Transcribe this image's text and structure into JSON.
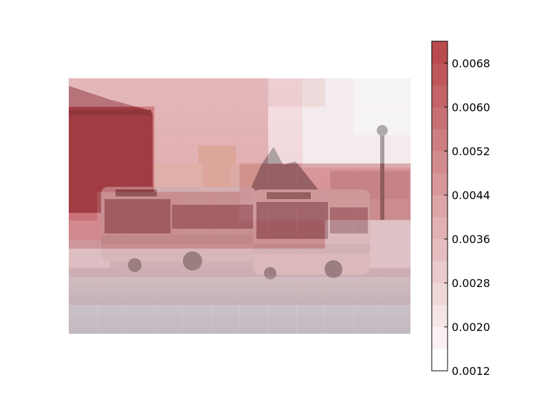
{
  "chart_data": {
    "type": "heatmap",
    "background": "photo of two city buses parked on a snowy lot at dusk, red/brick building at left, bare trees at right",
    "overlay": {
      "rows": 9,
      "cols": 12,
      "values": [
        [
          0.0043,
          0.0043,
          0.0043,
          0.0043,
          0.0043,
          0.0043,
          0.0043,
          0.003,
          0.0029,
          0.002,
          0.0019,
          0.0018
        ],
        [
          0.0074,
          0.0074,
          0.0074,
          0.0043,
          0.0043,
          0.0043,
          0.0043,
          0.0024,
          0.0023,
          0.002,
          0.0019,
          0.0019
        ],
        [
          0.0074,
          0.0074,
          0.0074,
          0.0043,
          0.0043,
          0.0043,
          0.0043,
          0.0024,
          0.0023,
          0.0022,
          0.0021,
          0.0021
        ],
        [
          0.0074,
          0.0074,
          0.0074,
          0.0043,
          0.0043,
          0.0043,
          0.0054,
          0.0054,
          0.0054,
          0.0054,
          0.0054,
          0.0054
        ],
        [
          0.0074,
          0.0058,
          0.0058,
          0.0058,
          0.0058,
          0.0058,
          0.0054,
          0.0054,
          0.0054,
          0.0054,
          0.0054,
          0.0054
        ],
        [
          0.0058,
          0.0058,
          0.0058,
          0.0058,
          0.0058,
          0.0058,
          0.0058,
          0.0058,
          0.0058,
          0.0036,
          0.0036,
          0.0036
        ],
        [
          0.0036,
          0.0036,
          0.0036,
          0.0036,
          0.0036,
          0.0036,
          0.0036,
          0.0036,
          0.0036,
          0.0036,
          0.0036,
          0.0036
        ],
        [
          0.003,
          0.003,
          0.003,
          0.003,
          0.003,
          0.003,
          0.003,
          0.003,
          0.003,
          0.003,
          0.003,
          0.003
        ],
        [
          0.0022,
          0.0022,
          0.0022,
          0.0022,
          0.0022,
          0.0022,
          0.0022,
          0.0022,
          0.0022,
          0.0022,
          0.0022,
          0.0022
        ]
      ]
    },
    "colorbar": {
      "min": 0.0012,
      "max": 0.0072,
      "levels": 15,
      "ticks": [
        "0.0012",
        "0.0020",
        "0.0028",
        "0.0036",
        "0.0044",
        "0.0052",
        "0.0060",
        "0.0068"
      ],
      "colormap": "Reds",
      "color_low": "#ffffff",
      "color_high": "#b94a4e"
    }
  }
}
